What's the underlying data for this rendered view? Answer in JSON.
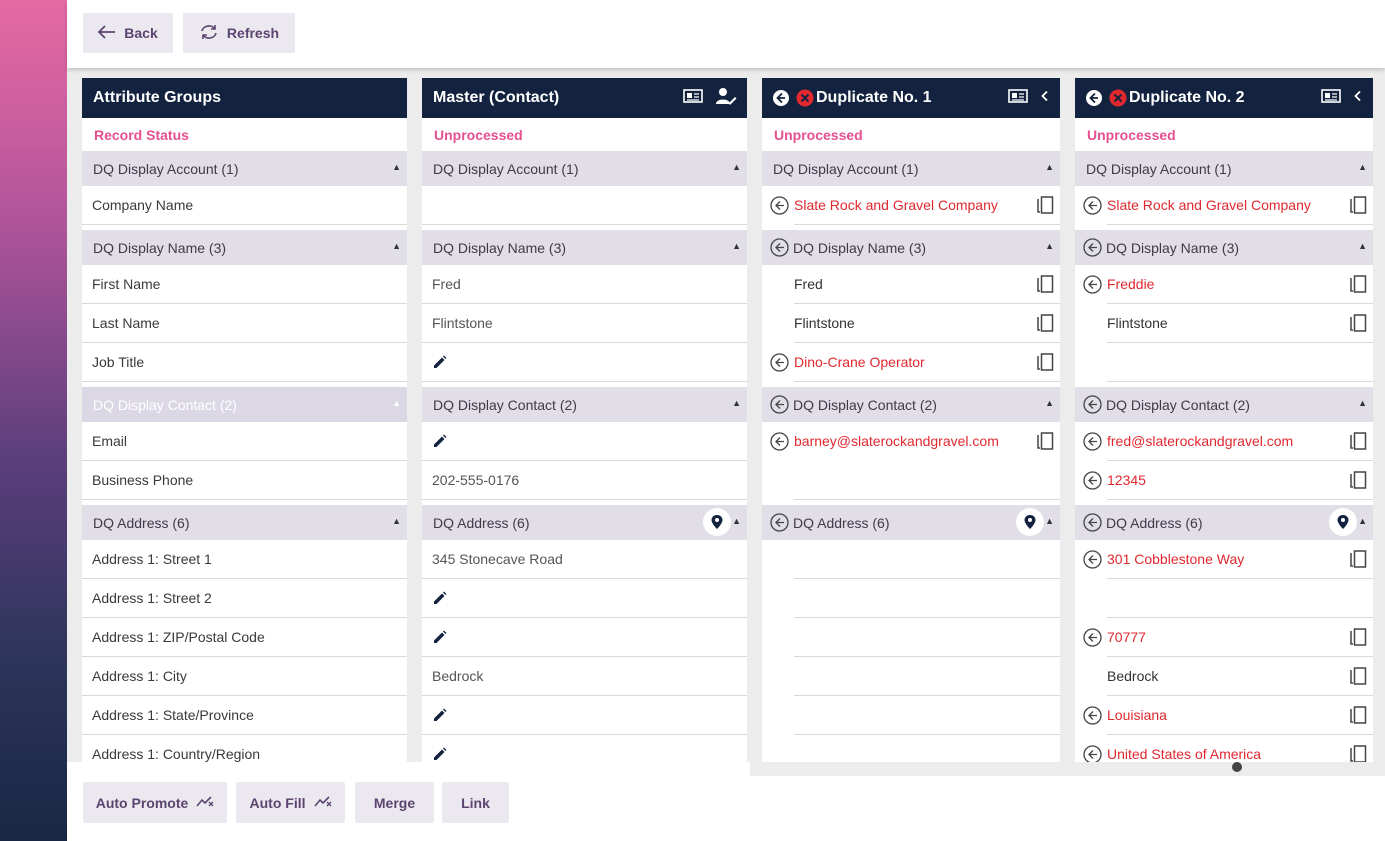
{
  "toolbar": {
    "back_label": "Back",
    "refresh_label": "Refresh"
  },
  "attr_col": {
    "title": "Attribute Groups",
    "status_label": "Record Status",
    "groups": [
      {
        "name": "DQ Display Account (1)",
        "fields": [
          "Company Name"
        ]
      },
      {
        "name": "DQ Display Name (3)",
        "fields": [
          "First Name",
          "Last Name",
          "Job Title"
        ]
      },
      {
        "name": "DQ Display Contact (2)",
        "fields": [
          "Email",
          "Business Phone"
        ]
      },
      {
        "name": "DQ Address (6)",
        "fields": [
          "Address 1: Street 1",
          "Address 1: Street 2",
          "Address 1: ZIP/Postal Code",
          "Address 1: City",
          "Address 1: State/Province",
          "Address 1: Country/Region"
        ]
      }
    ]
  },
  "master_col": {
    "title": "Master (Contact)",
    "status": "Unprocessed",
    "groups": [
      "DQ Display Account (1)",
      "DQ Display Name (3)",
      "DQ Display Contact (2)",
      "DQ Address (6)"
    ],
    "values": {
      "first_name": "Fred",
      "last_name": "Flintstone",
      "business_phone": "202-555-0176",
      "street1": "345 Stonecave Road",
      "city": "Bedrock"
    }
  },
  "dup1": {
    "title": "Duplicate No. 1",
    "status": "Unprocessed",
    "groups": [
      "DQ Display Account (1)",
      "DQ Display Name (3)",
      "DQ Display Contact (2)",
      "DQ Address (6)"
    ],
    "values": {
      "company": "Slate Rock and Gravel Company",
      "first_name": "Fred",
      "last_name": "Flintstone",
      "job_title": "Dino-Crane Operator",
      "email": "barney@slaterockandgravel.com"
    }
  },
  "dup2": {
    "title": "Duplicate No. 2",
    "status": "Unprocessed",
    "groups": [
      "DQ Display Account (1)",
      "DQ Display Name (3)",
      "DQ Display Contact (2)",
      "DQ Address (6)"
    ],
    "values": {
      "company": "Slate Rock and Gravel Company",
      "first_name": "Freddie",
      "last_name": "Flintstone",
      "email": "fred@slaterockandgravel.com",
      "business_phone": "12345",
      "street1": "301 Cobblestone Way",
      "zip": "70777",
      "city": "Bedrock",
      "state": "Louisiana",
      "country": "United States of America"
    }
  },
  "actions": {
    "auto_promote": "Auto Promote",
    "auto_fill": "Auto Fill",
    "merge": "Merge",
    "link": "Link"
  },
  "colors": {
    "header_bg": "#13233f",
    "accent_pink": "#e5508f",
    "diff_red": "#e0282f",
    "group_bg": "#e2dee8"
  }
}
